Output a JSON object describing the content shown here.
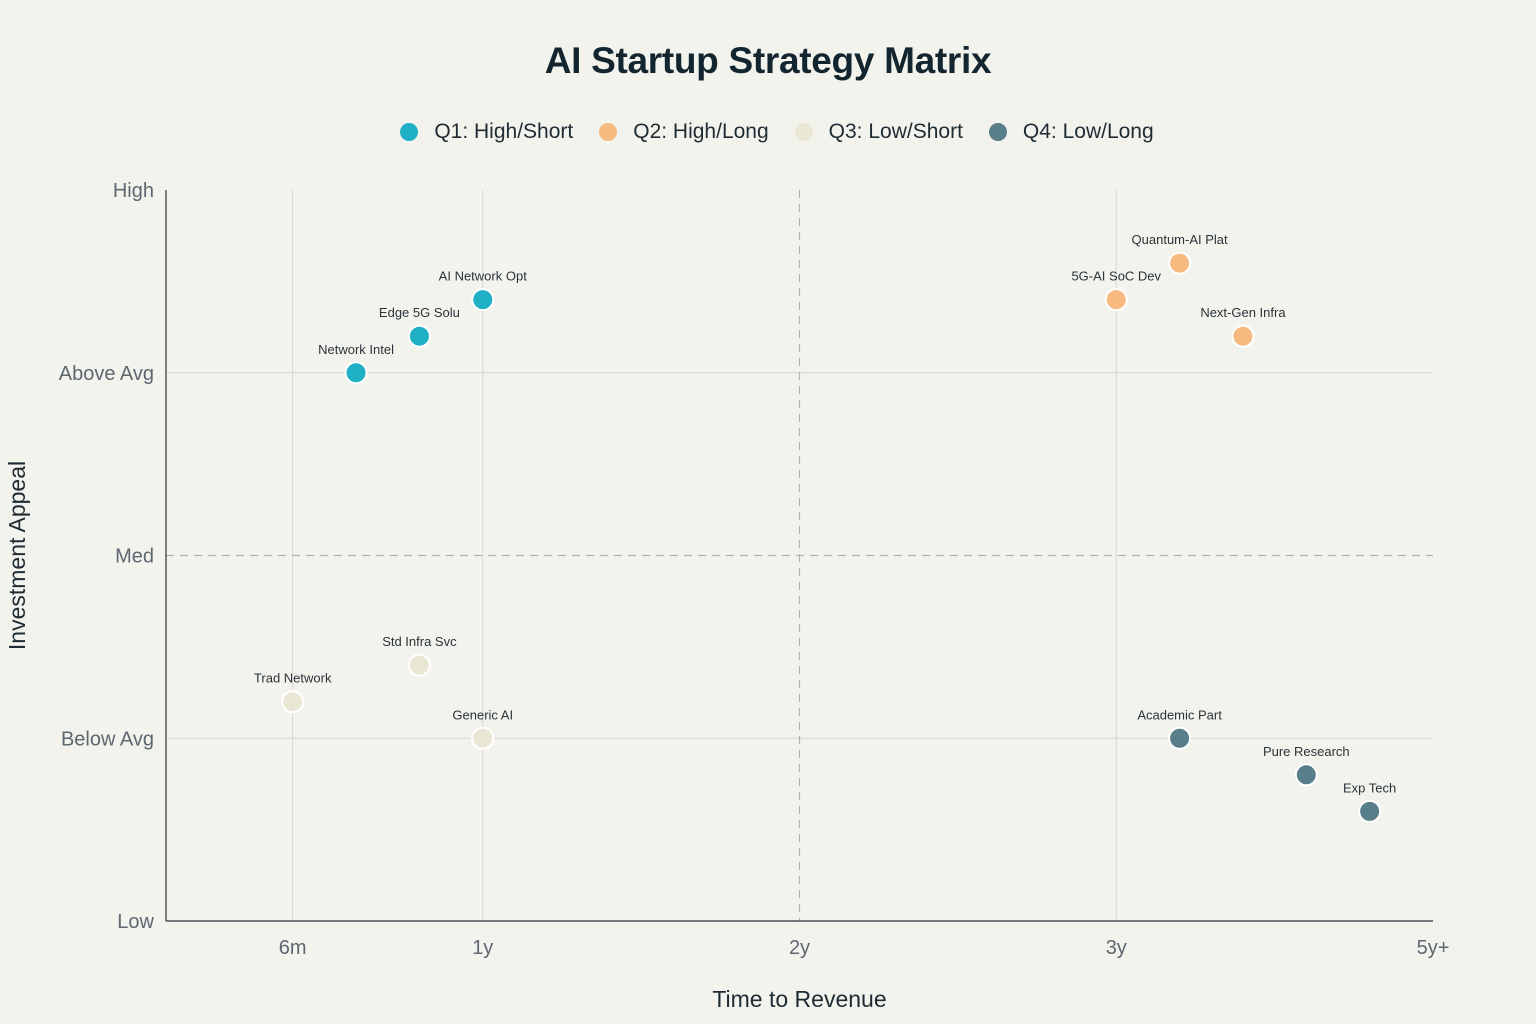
{
  "chart_data": {
    "type": "scatter",
    "title": "AI Startup Strategy Matrix",
    "xlabel": "Time to Revenue",
    "ylabel": "Investment Appeal",
    "x_tick_values": [
      1,
      1.6,
      2.6,
      3.6,
      4.6
    ],
    "x_tick_labels": [
      "6m",
      "1y",
      "2y",
      "3y",
      "5y+"
    ],
    "xlim": [
      0.6,
      4.6
    ],
    "y_tick_values": [
      1,
      2,
      3,
      4,
      5
    ],
    "y_tick_labels": [
      "Low",
      "Below Avg",
      "Med",
      "Above Avg",
      "High"
    ],
    "ylim": [
      1,
      5
    ],
    "divider_x": 2.6,
    "divider_y": 3,
    "series": [
      {
        "name": "Q1: High/Short",
        "color": "#1fb0c6",
        "points": [
          {
            "label": "AI Network Opt",
            "x": 1.6,
            "y": 4.4
          },
          {
            "label": "Edge 5G Solu",
            "x": 1.4,
            "y": 4.2
          },
          {
            "label": "Network Intel",
            "x": 1.2,
            "y": 4.0
          }
        ]
      },
      {
        "name": "Q2: High/Long",
        "color": "#f6b97f",
        "points": [
          {
            "label": "Quantum-AI Plat",
            "x": 3.8,
            "y": 4.6
          },
          {
            "label": "5G-AI SoC Dev",
            "x": 3.6,
            "y": 4.4
          },
          {
            "label": "Next-Gen Infra",
            "x": 4.0,
            "y": 4.2
          }
        ]
      },
      {
        "name": "Q3: Low/Short",
        "color": "#e9e7d4",
        "points": [
          {
            "label": "Std Infra Svc",
            "x": 1.4,
            "y": 2.4
          },
          {
            "label": "Trad Network",
            "x": 1.0,
            "y": 2.2
          },
          {
            "label": "Generic AI",
            "x": 1.6,
            "y": 2.0
          }
        ]
      },
      {
        "name": "Q4: Low/Long",
        "color": "#587e8a",
        "points": [
          {
            "label": "Academic Part",
            "x": 3.8,
            "y": 2.0
          },
          {
            "label": "Pure Research",
            "x": 4.2,
            "y": 1.8
          },
          {
            "label": "Exp Tech",
            "x": 4.4,
            "y": 1.6
          }
        ]
      }
    ]
  }
}
